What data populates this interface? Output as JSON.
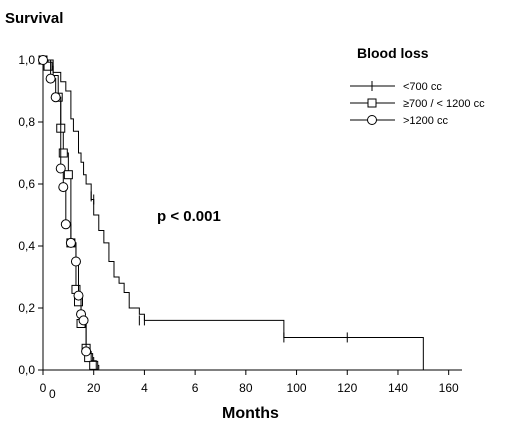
{
  "chart_data": {
    "type": "line",
    "title": "",
    "ylabel": "Survival",
    "xlabel": "Months",
    "ylim": [
      0,
      1
    ],
    "x_ticks": [
      "0",
      "20",
      "4",
      "6",
      "80",
      "100",
      "120",
      "140",
      "160"
    ],
    "y_ticks": [
      "0,0",
      "0,2",
      "0,4",
      "0,6",
      "0,8",
      "1,0"
    ],
    "extra_x_label": "0",
    "annotation": "p < 0.001",
    "legend": {
      "title": "Blood loss",
      "placement": "top-right",
      "entries": [
        "<700 cc",
        "≥700 / < 1200 cc",
        ">1200 cc"
      ]
    },
    "series": [
      {
        "name": "<700 cc",
        "marker": "plus",
        "steps": [
          [
            0,
            1.0
          ],
          [
            4,
            0.96
          ],
          [
            7,
            0.93
          ],
          [
            9,
            0.9
          ],
          [
            11,
            0.81
          ],
          [
            12,
            0.77
          ],
          [
            14,
            0.7
          ],
          [
            15,
            0.67
          ],
          [
            16,
            0.63
          ],
          [
            17,
            0.6
          ],
          [
            19,
            0.55
          ],
          [
            20,
            0.5
          ],
          [
            22,
            0.45
          ],
          [
            24,
            0.41
          ],
          [
            26,
            0.35
          ],
          [
            28,
            0.3
          ],
          [
            30,
            0.28
          ],
          [
            32,
            0.25
          ],
          [
            34,
            0.2
          ],
          [
            38,
            0.18
          ],
          [
            40,
            0.16
          ],
          [
            95,
            0.105
          ],
          [
            150,
            0.0
          ]
        ],
        "censored": [
          [
            19,
            0.56
          ],
          [
            20,
            0.55
          ],
          [
            38,
            0.16
          ],
          [
            40,
            0.16
          ],
          [
            95,
            0.105
          ],
          [
            120,
            0.105
          ]
        ]
      },
      {
        "name": "≥700 / < 1200 cc",
        "marker": "square",
        "steps": [
          [
            0,
            1.0
          ],
          [
            2,
            0.98
          ],
          [
            4,
            0.95
          ],
          [
            6,
            0.88
          ],
          [
            7,
            0.78
          ],
          [
            8,
            0.7
          ],
          [
            10,
            0.63
          ],
          [
            11,
            0.41
          ],
          [
            13,
            0.26
          ],
          [
            14,
            0.22
          ],
          [
            15,
            0.15
          ],
          [
            17,
            0.07
          ],
          [
            18,
            0.04
          ],
          [
            20,
            0.015
          ],
          [
            22,
            0.0
          ]
        ],
        "points": [
          [
            0,
            1.0
          ],
          [
            2,
            0.98
          ],
          [
            6,
            0.88
          ],
          [
            7,
            0.78
          ],
          [
            8,
            0.7
          ],
          [
            10,
            0.63
          ],
          [
            11,
            0.41
          ],
          [
            13,
            0.26
          ],
          [
            14,
            0.22
          ],
          [
            15,
            0.15
          ],
          [
            17,
            0.07
          ],
          [
            18,
            0.04
          ],
          [
            20,
            0.015
          ]
        ]
      },
      {
        "name": ">1200 cc",
        "marker": "circle",
        "steps": [
          [
            0,
            1.0
          ],
          [
            3,
            0.94
          ],
          [
            5,
            0.88
          ],
          [
            7,
            0.65
          ],
          [
            8,
            0.59
          ],
          [
            9,
            0.47
          ],
          [
            11,
            0.41
          ],
          [
            13,
            0.35
          ],
          [
            14,
            0.24
          ],
          [
            15,
            0.18
          ],
          [
            16,
            0.16
          ],
          [
            17,
            0.06
          ],
          [
            19,
            0.03
          ],
          [
            21,
            0.0
          ]
        ],
        "points": [
          [
            0,
            1.0
          ],
          [
            3,
            0.94
          ],
          [
            5,
            0.88
          ],
          [
            7,
            0.65
          ],
          [
            8,
            0.59
          ],
          [
            9,
            0.47
          ],
          [
            11,
            0.41
          ],
          [
            13,
            0.35
          ],
          [
            14,
            0.24
          ],
          [
            15,
            0.18
          ],
          [
            16,
            0.16
          ],
          [
            17,
            0.06
          ]
        ]
      }
    ]
  }
}
